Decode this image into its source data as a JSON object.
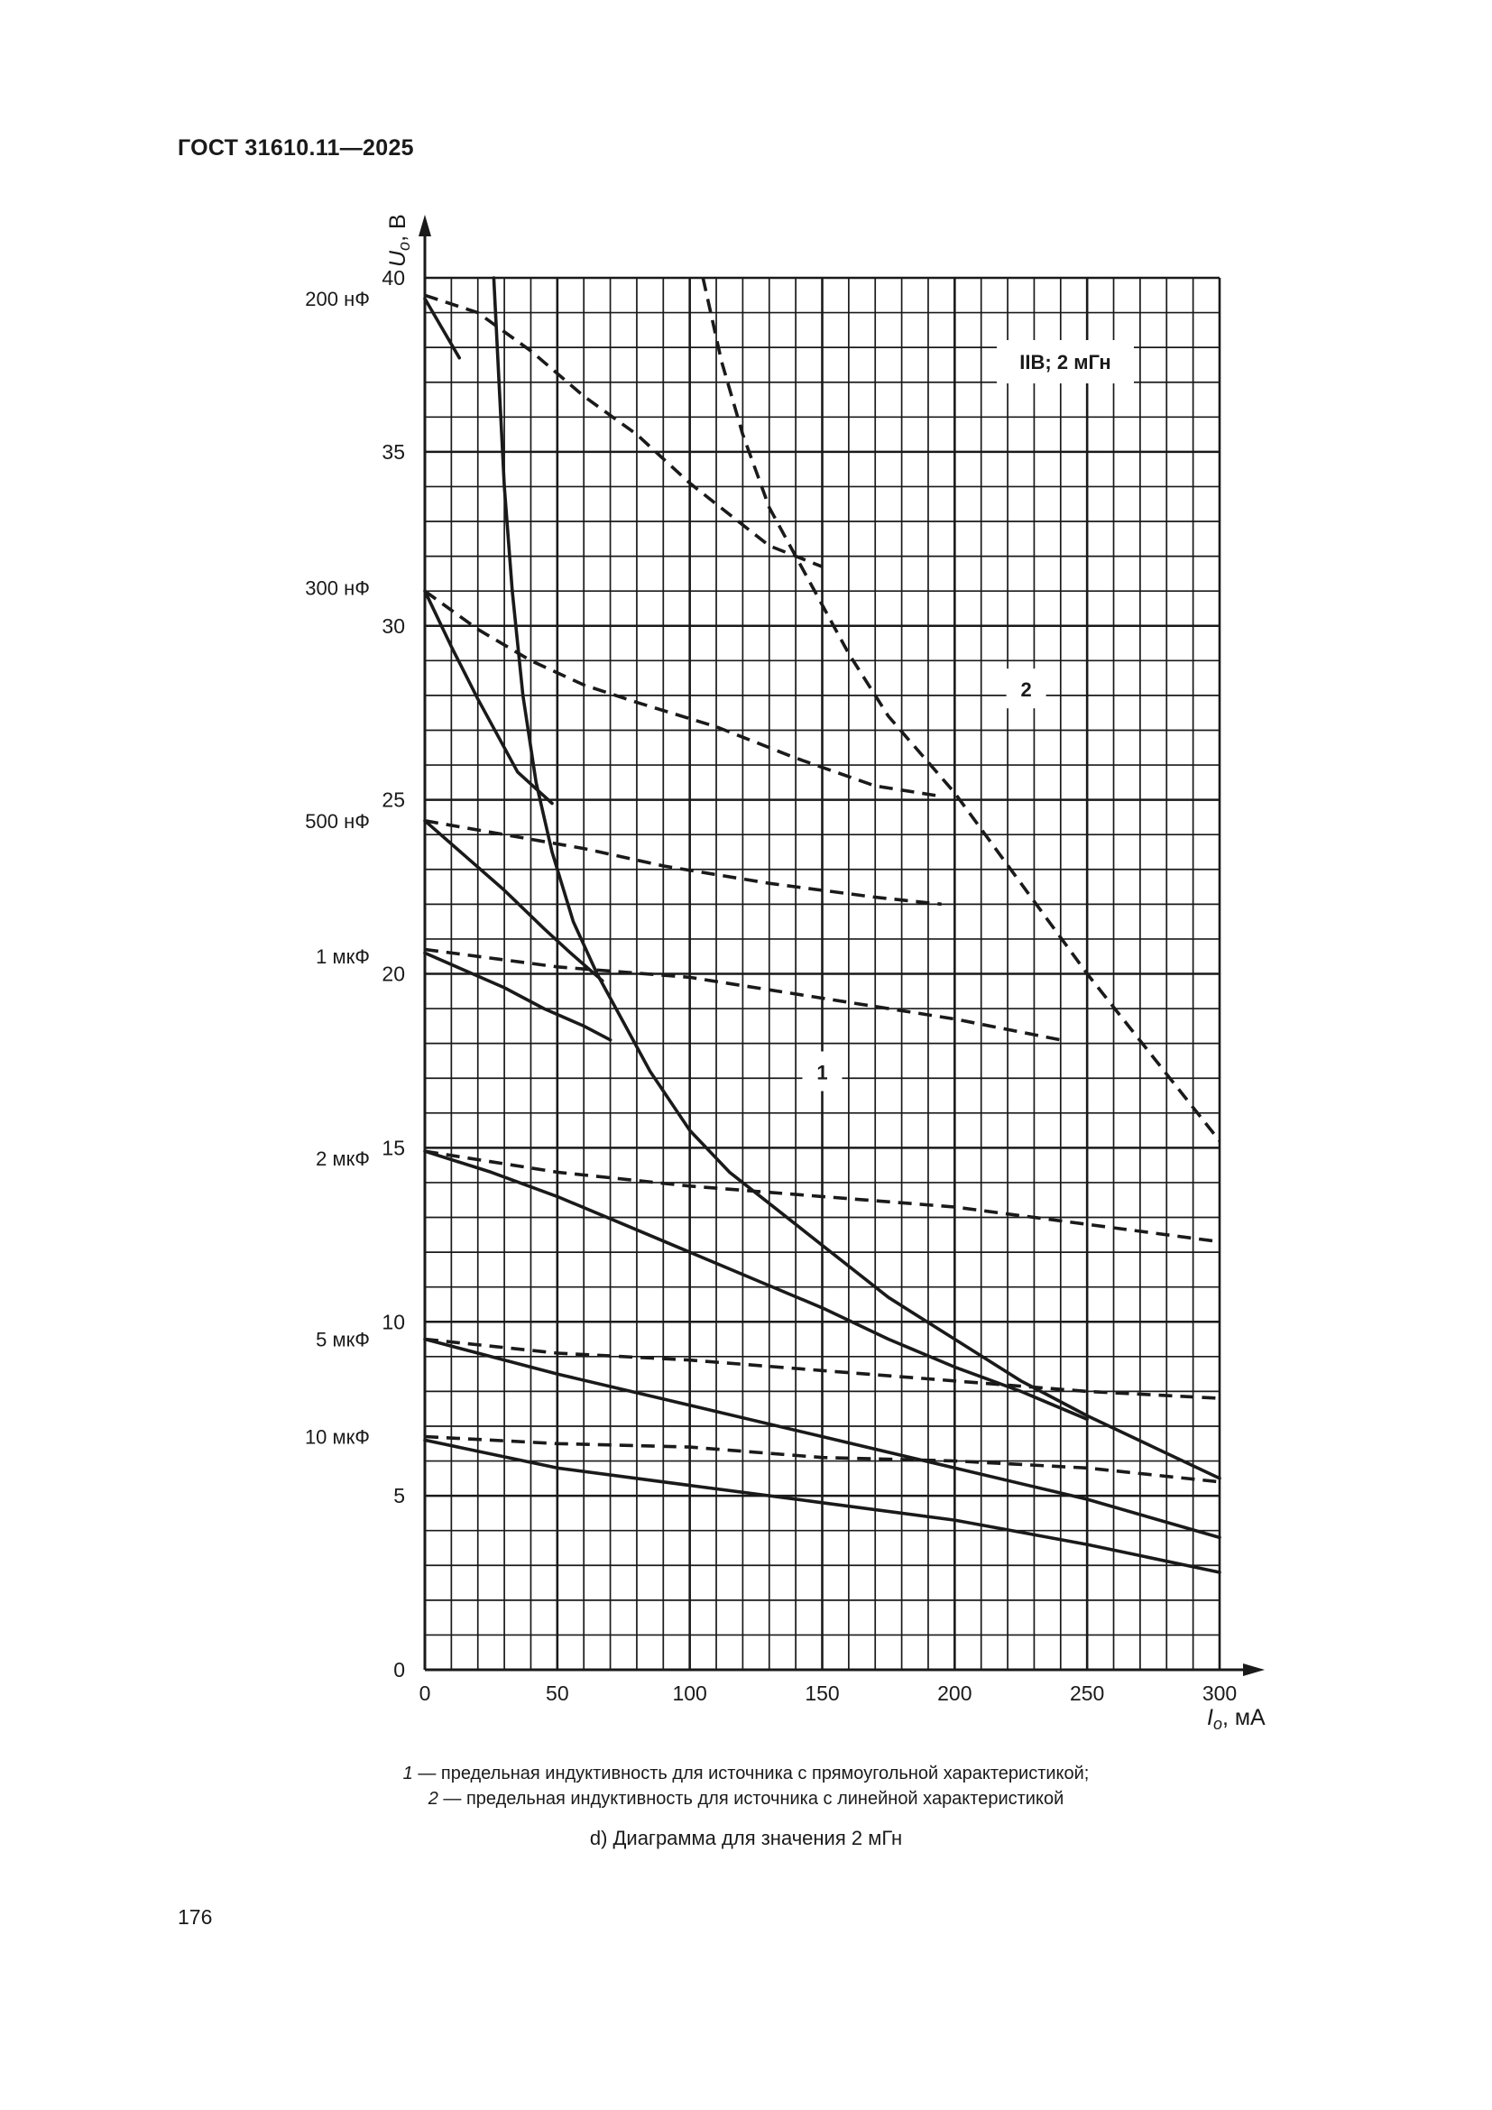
{
  "header": {
    "title": "ГОСТ 31610.11—2025"
  },
  "page_number": "176",
  "legend": [
    {
      "num": "1",
      "text": " — предельная индуктивность для источника с прямоугольной характеристикой;"
    },
    {
      "num": "2",
      "text": " — предельная индуктивность для источника с линейной характеристикой"
    }
  ],
  "caption": "d) Диаграмма для значения 2 мГн",
  "chart_data": {
    "type": "line",
    "title": "",
    "box_label": "IIB; 2 мГн",
    "xlabel_symbol": "I",
    "xlabel_sub": "o",
    "xlabel_unit": ", мА",
    "ylabel_symbol": "U",
    "ylabel_sub": "o",
    "ylabel_unit": ", В",
    "xlim": [
      0,
      300
    ],
    "ylim": [
      0,
      40
    ],
    "x_ticks": [
      0,
      50,
      100,
      150,
      200,
      250,
      300
    ],
    "y_ticks": [
      0,
      5,
      10,
      15,
      20,
      25,
      30,
      35,
      40
    ],
    "grid": true,
    "grid_minor_x": 10,
    "grid_minor_y": 1,
    "colors": {
      "line": "#1a1a1a",
      "grid": "#1a1a1a"
    },
    "capacitance_labels": [
      {
        "label": "200 нФ",
        "y": 39.4
      },
      {
        "label": "300 нФ",
        "y": 31.1
      },
      {
        "label": "500 нФ",
        "y": 24.4
      },
      {
        "label": "1 мкФ",
        "y": 20.5
      },
      {
        "label": "2 мкФ",
        "y": 14.7
      },
      {
        "label": "5 мкФ",
        "y": 9.5
      },
      {
        "label": "10 мкФ",
        "y": 6.7
      }
    ],
    "curve_labels": [
      {
        "label": "1",
        "x": 150,
        "y": 17.2
      },
      {
        "label": "2",
        "x": 227,
        "y": 28.2
      }
    ],
    "series": [
      {
        "dash": false,
        "points": [
          [
            26,
            40
          ],
          [
            28,
            37
          ],
          [
            30,
            34
          ],
          [
            33,
            31
          ],
          [
            37,
            28
          ],
          [
            42,
            25.5
          ],
          [
            48,
            23.5
          ],
          [
            56,
            21.5
          ],
          [
            65,
            20
          ],
          [
            75,
            18.6
          ],
          [
            85,
            17.2
          ],
          [
            100,
            15.5
          ],
          [
            115,
            14.3
          ],
          [
            130,
            13.4
          ],
          [
            150,
            12.2
          ],
          [
            175,
            10.7
          ],
          [
            200,
            9.5
          ],
          [
            225,
            8.3
          ],
          [
            250,
            7.3
          ],
          [
            275,
            6.4
          ],
          [
            300,
            5.5
          ]
        ]
      },
      {
        "dash": true,
        "points": [
          [
            105,
            40
          ],
          [
            112,
            37.6
          ],
          [
            120,
            35.5
          ],
          [
            130,
            33.4
          ],
          [
            140,
            32
          ],
          [
            150,
            30.6
          ],
          [
            160,
            29.2
          ],
          [
            175,
            27.4
          ],
          [
            200,
            25.2
          ],
          [
            225,
            22.6
          ],
          [
            250,
            20
          ],
          [
            275,
            17.6
          ],
          [
            300,
            15.2
          ]
        ]
      },
      {
        "dash": false,
        "points": [
          [
            0,
            39.4
          ],
          [
            13,
            37.7
          ]
        ]
      },
      {
        "dash": true,
        "points": [
          [
            0,
            39.5
          ],
          [
            20,
            39
          ],
          [
            40,
            37.9
          ],
          [
            60,
            36.6
          ],
          [
            80,
            35.5
          ],
          [
            100,
            34.1
          ],
          [
            115,
            33.2
          ],
          [
            130,
            32.3
          ],
          [
            150,
            31.7
          ]
        ]
      },
      {
        "dash": false,
        "points": [
          [
            0,
            31
          ],
          [
            10,
            29.4
          ],
          [
            20,
            27.9
          ],
          [
            35,
            25.8
          ],
          [
            48,
            24.9
          ]
        ]
      },
      {
        "dash": true,
        "points": [
          [
            0,
            31
          ],
          [
            20,
            29.9
          ],
          [
            40,
            29
          ],
          [
            60,
            28.3
          ],
          [
            80,
            27.8
          ],
          [
            110,
            27.1
          ],
          [
            140,
            26.2
          ],
          [
            170,
            25.4
          ],
          [
            195,
            25.1
          ]
        ]
      },
      {
        "dash": false,
        "points": [
          [
            0,
            24.4
          ],
          [
            15,
            23.4
          ],
          [
            30,
            22.4
          ],
          [
            45,
            21.3
          ],
          [
            55,
            20.6
          ],
          [
            67,
            19.8
          ]
        ]
      },
      {
        "dash": true,
        "points": [
          [
            0,
            24.4
          ],
          [
            30,
            24
          ],
          [
            60,
            23.6
          ],
          [
            90,
            23.1
          ],
          [
            130,
            22.6
          ],
          [
            170,
            22.2
          ],
          [
            195,
            22
          ]
        ]
      },
      {
        "dash": false,
        "points": [
          [
            0,
            20.6
          ],
          [
            15,
            20.1
          ],
          [
            30,
            19.6
          ],
          [
            45,
            19
          ],
          [
            60,
            18.5
          ],
          [
            70,
            18.1
          ]
        ]
      },
      {
        "dash": true,
        "points": [
          [
            0,
            20.7
          ],
          [
            50,
            20.2
          ],
          [
            100,
            19.9
          ],
          [
            150,
            19.3
          ],
          [
            200,
            18.7
          ],
          [
            240,
            18.1
          ]
        ]
      },
      {
        "dash": false,
        "points": [
          [
            0,
            14.9
          ],
          [
            25,
            14.3
          ],
          [
            50,
            13.6
          ],
          [
            75,
            12.8
          ],
          [
            100,
            12
          ],
          [
            125,
            11.2
          ],
          [
            150,
            10.4
          ],
          [
            175,
            9.5
          ],
          [
            200,
            8.7
          ],
          [
            225,
            8
          ],
          [
            250,
            7.2
          ]
        ]
      },
      {
        "dash": true,
        "points": [
          [
            0,
            14.9
          ],
          [
            50,
            14.3
          ],
          [
            100,
            13.9
          ],
          [
            150,
            13.6
          ],
          [
            200,
            13.3
          ],
          [
            250,
            12.8
          ],
          [
            300,
            12.3
          ]
        ]
      },
      {
        "dash": false,
        "points": [
          [
            0,
            9.5
          ],
          [
            50,
            8.5
          ],
          [
            100,
            7.6
          ],
          [
            150,
            6.7
          ],
          [
            200,
            5.8
          ],
          [
            250,
            4.9
          ],
          [
            300,
            3.8
          ]
        ]
      },
      {
        "dash": true,
        "points": [
          [
            0,
            9.5
          ],
          [
            50,
            9.1
          ],
          [
            100,
            8.9
          ],
          [
            150,
            8.6
          ],
          [
            200,
            8.3
          ],
          [
            250,
            8
          ],
          [
            300,
            7.8
          ]
        ]
      },
      {
        "dash": false,
        "points": [
          [
            0,
            6.6
          ],
          [
            50,
            5.8
          ],
          [
            100,
            5.3
          ],
          [
            150,
            4.8
          ],
          [
            200,
            4.3
          ],
          [
            250,
            3.6
          ],
          [
            300,
            2.8
          ]
        ]
      },
      {
        "dash": true,
        "points": [
          [
            0,
            6.7
          ],
          [
            50,
            6.5
          ],
          [
            100,
            6.4
          ],
          [
            150,
            6.1
          ],
          [
            200,
            6
          ],
          [
            250,
            5.8
          ],
          [
            300,
            5.4
          ]
        ]
      }
    ]
  }
}
